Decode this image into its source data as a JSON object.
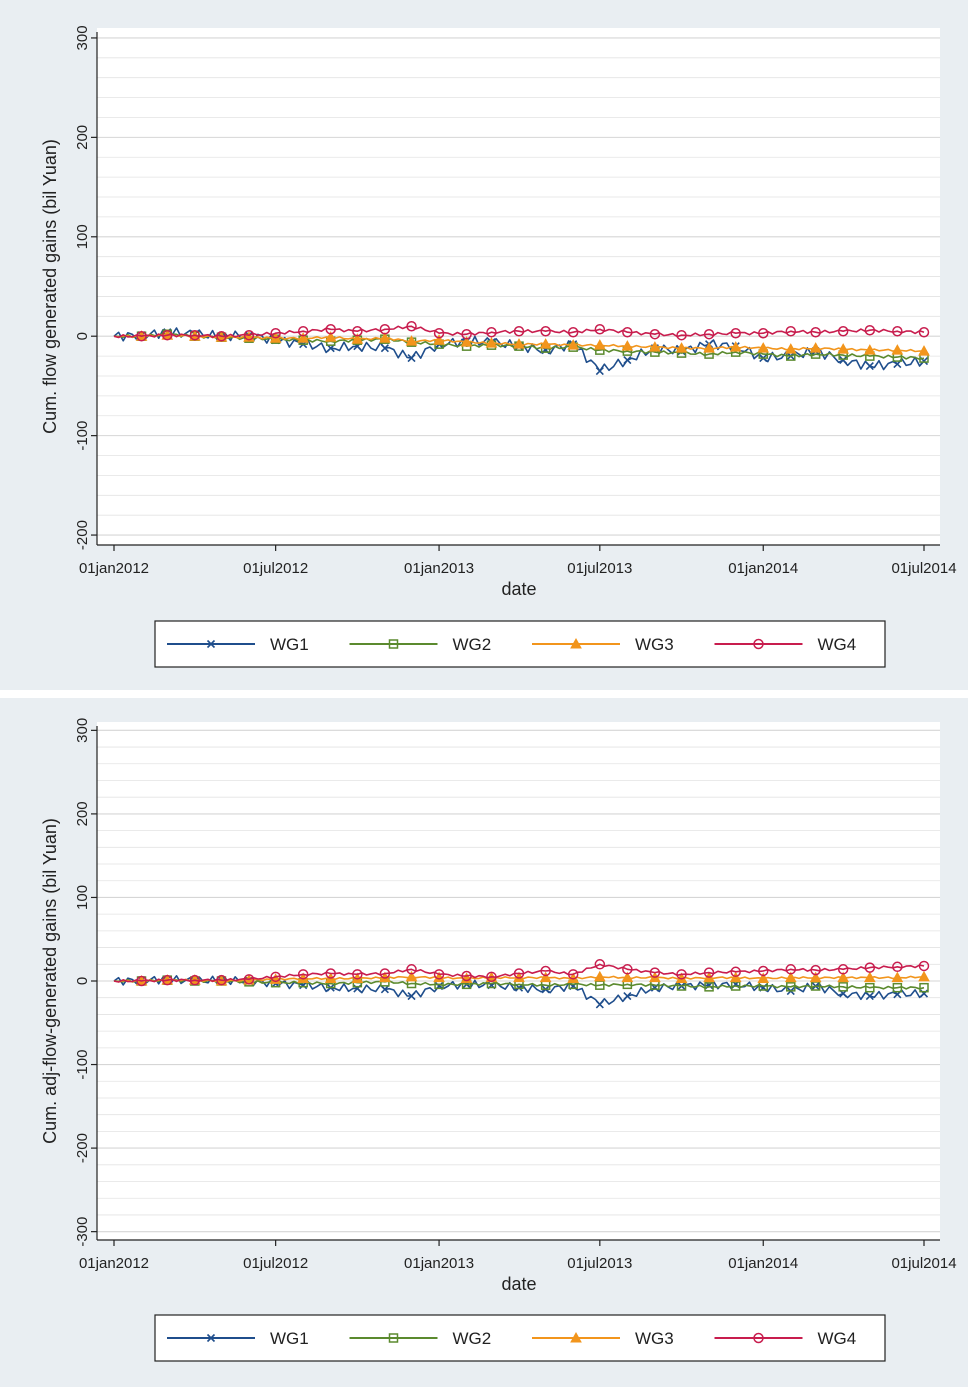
{
  "colors": {
    "WG1": "#1f4e8c",
    "WG2": "#5b8a2e",
    "WG3": "#f2951c",
    "WG4": "#c81d4e",
    "outer_bg": "#e9eef2",
    "plot_bg": "#ffffff",
    "grid": "#e3e3e3"
  },
  "chart_data": [
    {
      "type": "line",
      "xlabel": "date",
      "ylabel": "Cum. flow generated gains (bil Yuan)",
      "ylim": [
        -210,
        310
      ],
      "yticks": [
        300,
        200,
        100,
        0,
        -100,
        -200
      ],
      "ytick_labels": [
        "300",
        "200",
        "100",
        "0",
        "-100",
        "-200"
      ],
      "xticks": [
        "2012-01-01",
        "2012-07-01",
        "2013-01-01",
        "2013-07-01",
        "2014-01-01",
        "2014-07-01"
      ],
      "xtick_labels": [
        "01jan2012",
        "01jul2012",
        "01jan2013",
        "01jul2013",
        "01jan2014",
        "01jul2014"
      ],
      "grid": true,
      "legend_position": "bottom",
      "x": [
        "2012-01-01",
        "2012-02-01",
        "2012-03-01",
        "2012-04-01",
        "2012-05-01",
        "2012-06-01",
        "2012-07-01",
        "2012-08-01",
        "2012-09-01",
        "2012-10-01",
        "2012-11-01",
        "2012-12-01",
        "2013-01-01",
        "2013-02-01",
        "2013-03-01",
        "2013-04-01",
        "2013-05-01",
        "2013-06-01",
        "2013-07-01",
        "2013-08-01",
        "2013-09-01",
        "2013-10-01",
        "2013-11-01",
        "2013-12-01",
        "2014-01-01",
        "2014-02-01",
        "2014-03-01",
        "2014-04-01",
        "2014-05-01",
        "2014-06-01",
        "2014-07-01"
      ],
      "series": [
        {
          "name": "WG1",
          "marker": "x",
          "values": [
            0,
            1,
            4,
            2,
            0,
            1,
            -4,
            -8,
            -12,
            -10,
            -12,
            -22,
            -8,
            -5,
            -6,
            -10,
            -14,
            -8,
            -35,
            -24,
            -12,
            -15,
            -8,
            -10,
            -22,
            -20,
            -15,
            -24,
            -30,
            -28,
            -25
          ]
        },
        {
          "name": "WG2",
          "marker": "square",
          "values": [
            0,
            0,
            2,
            0,
            -1,
            -2,
            -3,
            -4,
            -5,
            -4,
            -3,
            -6,
            -8,
            -10,
            -9,
            -10,
            -12,
            -11,
            -14,
            -15,
            -16,
            -17,
            -18,
            -16,
            -18,
            -20,
            -18,
            -19,
            -20,
            -21,
            -22
          ]
        },
        {
          "name": "WG3",
          "marker": "triangle",
          "values": [
            0,
            0,
            1,
            0,
            -1,
            -1,
            -2,
            -2,
            -1,
            -3,
            -2,
            -5,
            -4,
            -6,
            -7,
            -8,
            -8,
            -9,
            -9,
            -10,
            -11,
            -12,
            -12,
            -11,
            -12,
            -13,
            -12,
            -13,
            -14,
            -14,
            -15
          ]
        },
        {
          "name": "WG4",
          "marker": "circle",
          "values": [
            0,
            0,
            1,
            1,
            0,
            1,
            3,
            5,
            7,
            5,
            7,
            10,
            3,
            2,
            4,
            5,
            5,
            4,
            7,
            4,
            2,
            1,
            2,
            3,
            3,
            5,
            4,
            5,
            6,
            5,
            4
          ]
        }
      ]
    },
    {
      "type": "line",
      "xlabel": "date",
      "ylabel": "Cum. adj-flow-generated gains (bil Yuan)",
      "ylim": [
        -310,
        310
      ],
      "yticks": [
        300,
        200,
        100,
        0,
        -100,
        -200,
        -300
      ],
      "ytick_labels": [
        "300",
        "200",
        "100",
        "0",
        "-100",
        "-200",
        "-300"
      ],
      "xticks": [
        "2012-01-01",
        "2012-07-01",
        "2013-01-01",
        "2013-07-01",
        "2014-01-01",
        "2014-07-01"
      ],
      "xtick_labels": [
        "01jan2012",
        "01jul2012",
        "01jan2013",
        "01jul2013",
        "01jan2014",
        "01jul2014"
      ],
      "grid": true,
      "legend_position": "bottom",
      "x": [
        "2012-01-01",
        "2012-02-01",
        "2012-03-01",
        "2012-04-01",
        "2012-05-01",
        "2012-06-01",
        "2012-07-01",
        "2012-08-01",
        "2012-09-01",
        "2012-10-01",
        "2012-11-01",
        "2012-12-01",
        "2013-01-01",
        "2013-02-01",
        "2013-03-01",
        "2013-04-01",
        "2013-05-01",
        "2013-06-01",
        "2013-07-01",
        "2013-08-01",
        "2013-09-01",
        "2013-10-01",
        "2013-11-01",
        "2013-12-01",
        "2014-01-01",
        "2014-02-01",
        "2014-03-01",
        "2014-04-01",
        "2014-05-01",
        "2014-06-01",
        "2014-07-01"
      ],
      "series": [
        {
          "name": "WG1",
          "marker": "x",
          "values": [
            0,
            1,
            2,
            0,
            1,
            0,
            -3,
            -5,
            -8,
            -9,
            -10,
            -18,
            -6,
            -4,
            -5,
            -8,
            -10,
            -6,
            -28,
            -18,
            -8,
            -6,
            -5,
            -4,
            -8,
            -12,
            -6,
            -15,
            -18,
            -16,
            -15
          ]
        },
        {
          "name": "WG2",
          "marker": "square",
          "values": [
            0,
            0,
            1,
            0,
            0,
            -1,
            -2,
            -2,
            -3,
            -2,
            -1,
            -3,
            -4,
            -4,
            -3,
            -4,
            -5,
            -4,
            -5,
            -4,
            -5,
            -6,
            -7,
            -6,
            -6,
            -7,
            -6,
            -7,
            -8,
            -8,
            -8
          ]
        },
        {
          "name": "WG3",
          "marker": "triangle",
          "values": [
            0,
            0,
            1,
            1,
            0,
            1,
            2,
            3,
            3,
            3,
            4,
            5,
            4,
            3,
            4,
            4,
            4,
            3,
            5,
            4,
            4,
            3,
            4,
            4,
            3,
            4,
            4,
            4,
            4,
            4,
            5
          ]
        },
        {
          "name": "WG4",
          "marker": "circle",
          "values": [
            0,
            0,
            1,
            1,
            1,
            2,
            5,
            8,
            9,
            8,
            9,
            14,
            8,
            6,
            5,
            9,
            12,
            8,
            20,
            14,
            10,
            8,
            10,
            11,
            12,
            14,
            13,
            14,
            16,
            17,
            18
          ]
        }
      ]
    }
  ]
}
